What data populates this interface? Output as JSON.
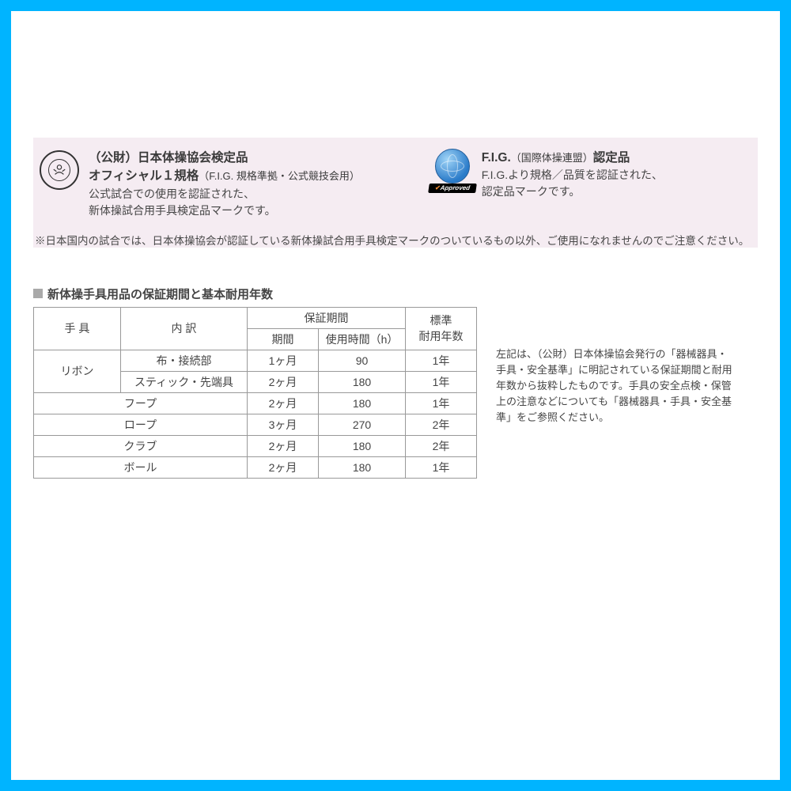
{
  "colors": {
    "frame_border": "#00b4ff",
    "cert_bg": "#f5ecf2",
    "text": "#454545",
    "table_border": "#999999",
    "section_sq": "#a9a9a9"
  },
  "cert": {
    "jga": {
      "line1": "（公財）日本体操協会検定品",
      "line2_main": "オフィシャル１規格",
      "line2_sub": "（F.I.G. 規格準拠・公式競技会用）",
      "desc1": "公式試合での使用を認証された、",
      "desc2": "新体操試合用手具検定品マークです。"
    },
    "fig": {
      "title_main": "F.I.G.",
      "title_sub": "（国際体操連盟）",
      "title_suffix": "認定品",
      "desc1": "F.I.G.より規格／品質を認証された、",
      "desc2": "認定品マークです。",
      "approved_label": "Approved"
    },
    "note": "※日本国内の試合では、日本体操協会が認証している新体操試合用手具検定マークのついているもの以外、ご使用になれませんのでご注意ください。"
  },
  "section_title": "新体操手具用品の保証期間と基本耐用年数",
  "table": {
    "head": {
      "equipment": "手 具",
      "breakdown": "内 訳",
      "warranty": "保証期間",
      "period": "期間",
      "hours": "使用時間（h）",
      "lifespan_l1": "標準",
      "lifespan_l2": "耐用年数"
    },
    "rows": [
      {
        "equipment": "リボン",
        "breakdown": "布・接続部",
        "period": "1ヶ月",
        "hours": "90",
        "lifespan": "1年",
        "eq_rowspan": 2
      },
      {
        "equipment": "",
        "breakdown": "スティック・先端具",
        "period": "2ヶ月",
        "hours": "180",
        "lifespan": "1年"
      },
      {
        "equipment": "フープ",
        "merged": true,
        "period": "2ヶ月",
        "hours": "180",
        "lifespan": "1年"
      },
      {
        "equipment": "ロープ",
        "merged": true,
        "period": "3ヶ月",
        "hours": "270",
        "lifespan": "2年"
      },
      {
        "equipment": "クラブ",
        "merged": true,
        "period": "2ヶ月",
        "hours": "180",
        "lifespan": "2年"
      },
      {
        "equipment": "ボール",
        "merged": true,
        "period": "2ヶ月",
        "hours": "180",
        "lifespan": "1年"
      }
    ]
  },
  "side_note": "左記は、（公財）日本体操協会発行の「器械器具・手具・安全基準」に明記されている保証期間と耐用年数から抜粋したものです。手具の安全点検・保管上の注意などについても「器械器具・手具・安全基準」をご参照ください。"
}
